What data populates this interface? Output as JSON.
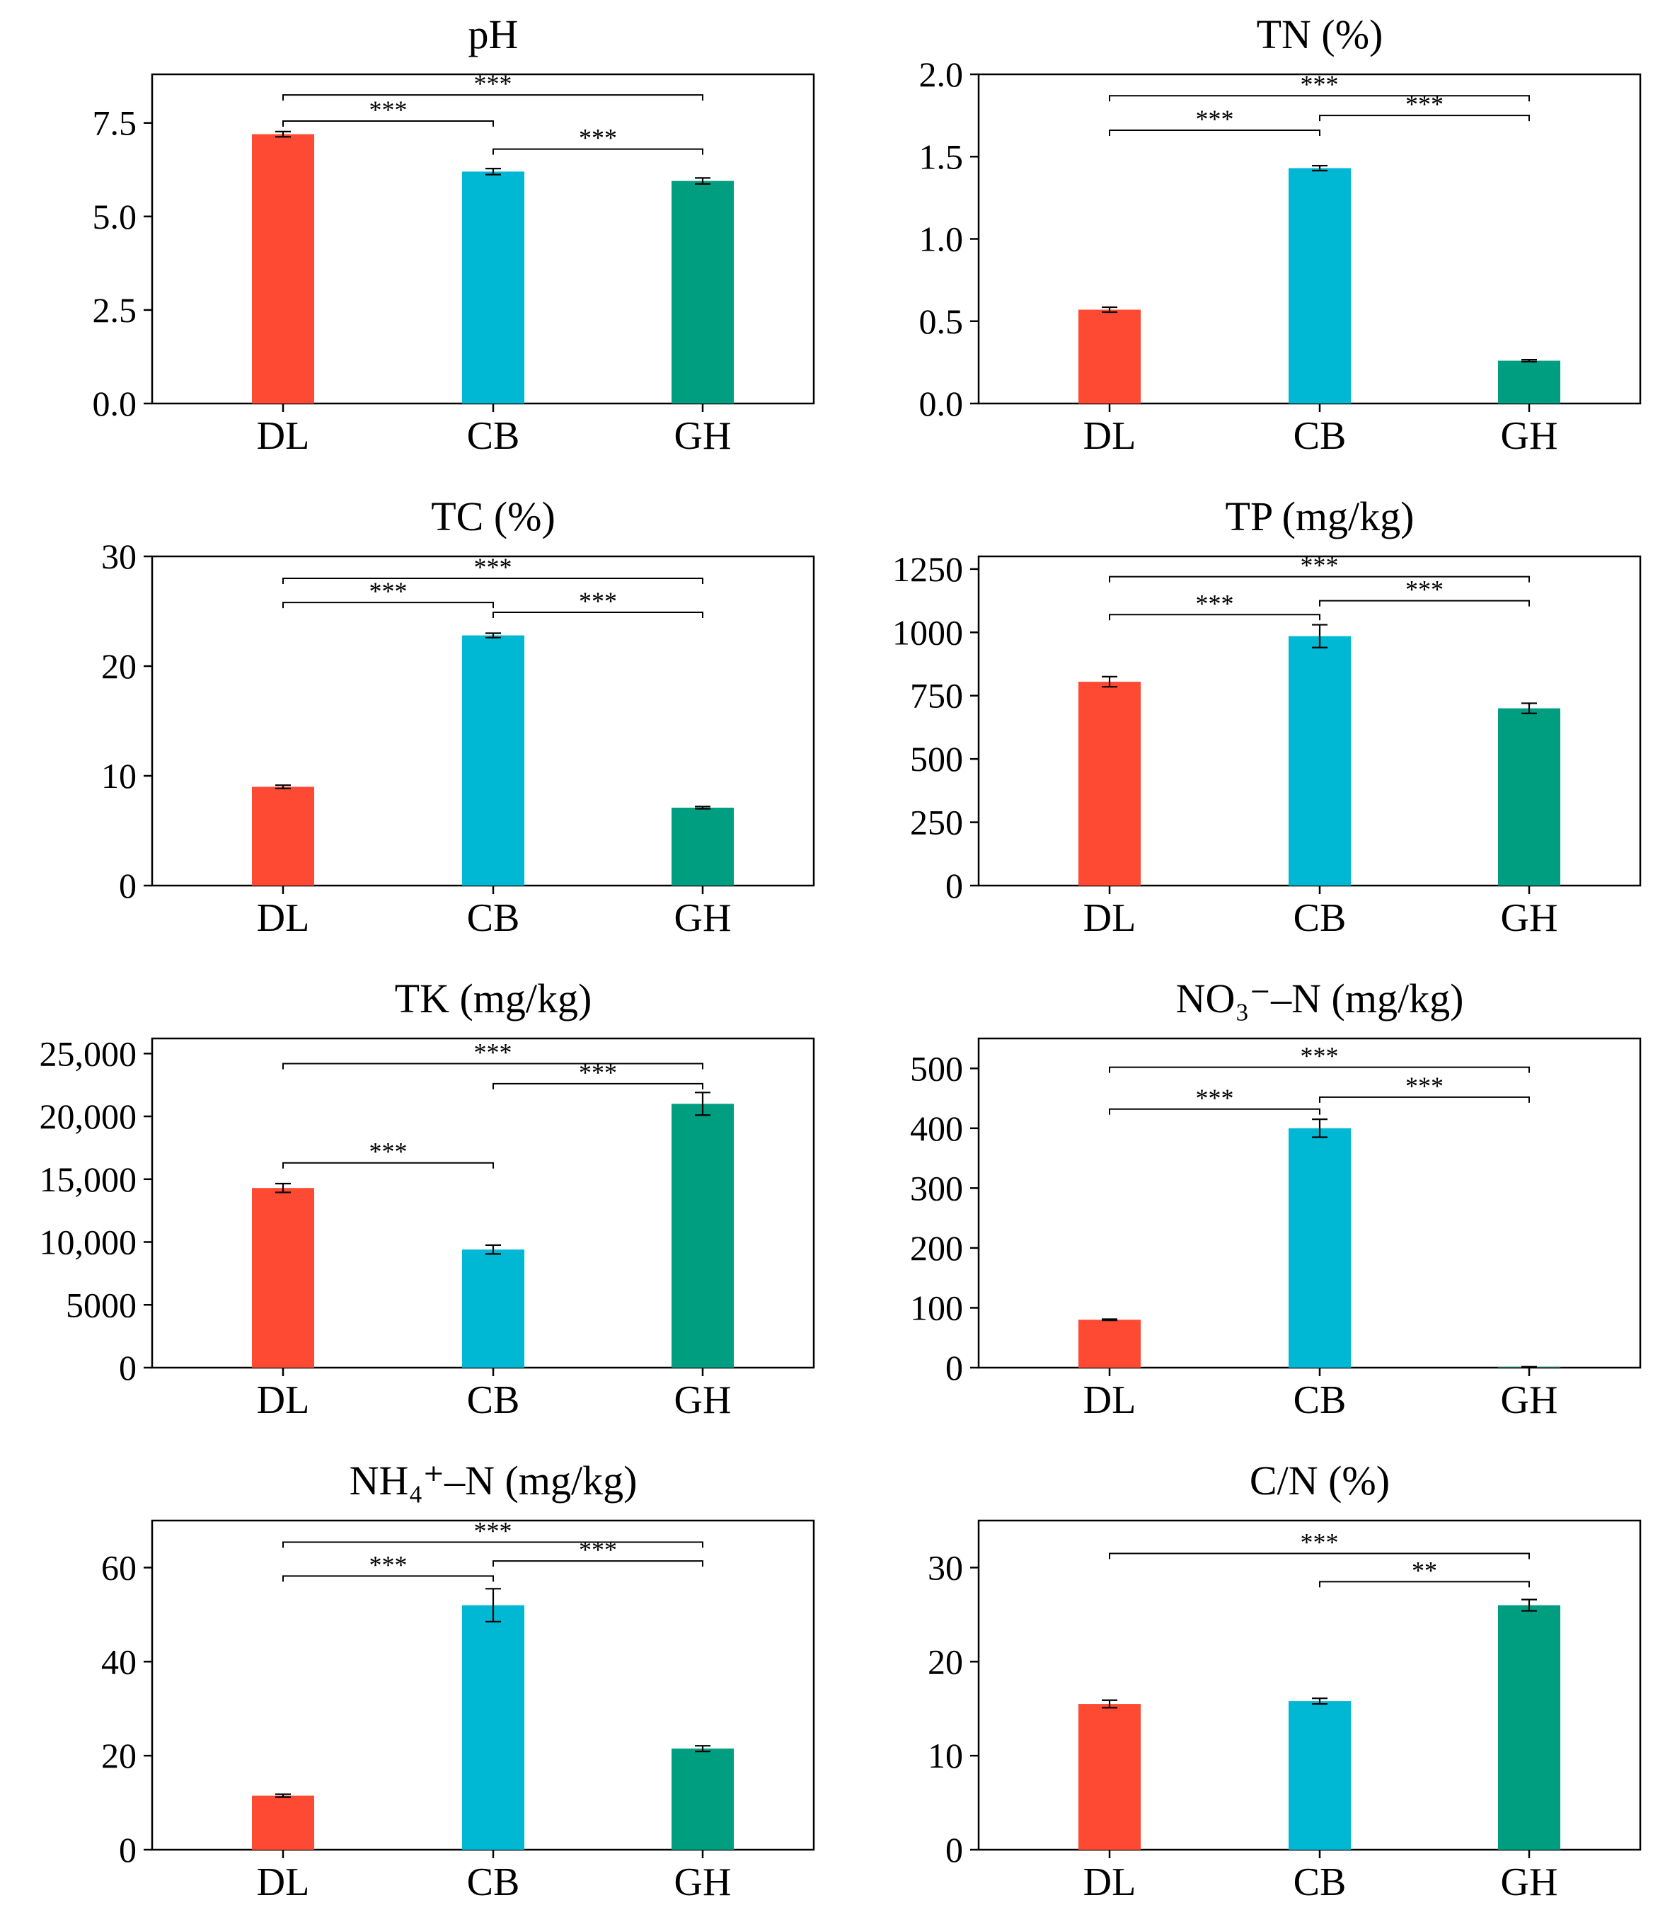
{
  "chart_data": [
    {
      "id": "ph",
      "type": "bar",
      "title": "pH",
      "categories": [
        "DL",
        "CB",
        "GH"
      ],
      "values": [
        7.2,
        6.2,
        5.95
      ],
      "errors": [
        0.07,
        0.08,
        0.08
      ],
      "colors": [
        "#ff4a33",
        "#00b8d4",
        "#009e80"
      ],
      "ylim": [
        0,
        8.8
      ],
      "yticks": [
        0,
        2.5,
        5.0,
        7.5
      ],
      "ytick_labels": [
        "0.0",
        "2.5",
        "5.0",
        "7.5"
      ],
      "significance": [
        {
          "from": 0,
          "to": 2,
          "label": "***",
          "y": 8.25
        },
        {
          "from": 0,
          "to": 1,
          "label": "***",
          "y": 7.55
        },
        {
          "from": 1,
          "to": 2,
          "label": "***",
          "y": 6.8
        }
      ]
    },
    {
      "id": "tn",
      "type": "bar",
      "title": "TN (%)",
      "categories": [
        "DL",
        "CB",
        "GH"
      ],
      "values": [
        0.57,
        1.43,
        0.26
      ],
      "errors": [
        0.015,
        0.015,
        0.006
      ],
      "colors": [
        "#ff4a33",
        "#00b8d4",
        "#009e80"
      ],
      "ylim": [
        0,
        2.0
      ],
      "yticks": [
        0,
        0.5,
        1.0,
        1.5,
        2.0
      ],
      "ytick_labels": [
        "0.0",
        "0.5",
        "1.0",
        "1.5",
        "2.0"
      ],
      "significance": [
        {
          "from": 0,
          "to": 2,
          "label": "***",
          "y": 1.87
        },
        {
          "from": 0,
          "to": 1,
          "label": "***",
          "y": 1.66
        },
        {
          "from": 1,
          "to": 2,
          "label": "***",
          "y": 1.75
        }
      ]
    },
    {
      "id": "tc",
      "type": "bar",
      "title": "TC (%)",
      "categories": [
        "DL",
        "CB",
        "GH"
      ],
      "values": [
        9.0,
        22.8,
        7.1
      ],
      "errors": [
        0.15,
        0.2,
        0.1
      ],
      "colors": [
        "#ff4a33",
        "#00b8d4",
        "#009e80"
      ],
      "ylim": [
        0,
        30
      ],
      "yticks": [
        0,
        10,
        20,
        30
      ],
      "ytick_labels": [
        "0",
        "10",
        "20",
        "30"
      ],
      "significance": [
        {
          "from": 0,
          "to": 2,
          "label": "***",
          "y": 28.0
        },
        {
          "from": 0,
          "to": 1,
          "label": "***",
          "y": 25.8
        },
        {
          "from": 1,
          "to": 2,
          "label": "***",
          "y": 24.9
        }
      ]
    },
    {
      "id": "tp",
      "type": "bar",
      "title": "TP (mg/kg)",
      "categories": [
        "DL",
        "CB",
        "GH"
      ],
      "values": [
        805,
        985,
        700
      ],
      "errors": [
        20,
        45,
        20
      ],
      "colors": [
        "#ff4a33",
        "#00b8d4",
        "#009e80"
      ],
      "ylim": [
        0,
        1300
      ],
      "yticks": [
        0,
        250,
        500,
        750,
        1000,
        1250
      ],
      "ytick_labels": [
        "0",
        "250",
        "500",
        "750",
        "1000",
        "1250"
      ],
      "significance": [
        {
          "from": 0,
          "to": 2,
          "label": "***",
          "y": 1220
        },
        {
          "from": 0,
          "to": 1,
          "label": "***",
          "y": 1070
        },
        {
          "from": 1,
          "to": 2,
          "label": "***",
          "y": 1125
        }
      ]
    },
    {
      "id": "tk",
      "type": "bar",
      "title": "TK (mg/kg)",
      "categories": [
        "DL",
        "CB",
        "GH"
      ],
      "values": [
        14300,
        9400,
        21000
      ],
      "errors": [
        350,
        350,
        900
      ],
      "colors": [
        "#ff4a33",
        "#00b8d4",
        "#009e80"
      ],
      "ylim": [
        0,
        26200
      ],
      "yticks": [
        0,
        5000,
        10000,
        15000,
        20000,
        25000
      ],
      "ytick_labels": [
        "0",
        "5000",
        "10,000",
        "15,000",
        "20,000",
        "25,000"
      ],
      "significance": [
        {
          "from": 0,
          "to": 2,
          "label": "***",
          "y": 24200
        },
        {
          "from": 1,
          "to": 2,
          "label": "***",
          "y": 22600
        },
        {
          "from": 0,
          "to": 1,
          "label": "***",
          "y": 16300
        }
      ]
    },
    {
      "id": "no3",
      "type": "bar",
      "title": "NO₃⁻–N (mg/kg)",
      "categories": [
        "DL",
        "CB",
        "GH"
      ],
      "values": [
        80,
        400,
        1
      ],
      "errors": [
        1,
        15,
        0.5
      ],
      "colors": [
        "#ff4a33",
        "#00b8d4",
        "#009e80"
      ],
      "ylim": [
        0,
        550
      ],
      "yticks": [
        0,
        100,
        200,
        300,
        400,
        500
      ],
      "ytick_labels": [
        "0",
        "100",
        "200",
        "300",
        "400",
        "500"
      ],
      "significance": [
        {
          "from": 0,
          "to": 2,
          "label": "***",
          "y": 502
        },
        {
          "from": 0,
          "to": 1,
          "label": "***",
          "y": 432
        },
        {
          "from": 1,
          "to": 2,
          "label": "***",
          "y": 452
        }
      ]
    },
    {
      "id": "nh4",
      "type": "bar",
      "title": "NH₄⁺–N (mg/kg)",
      "categories": [
        "DL",
        "CB",
        "GH"
      ],
      "values": [
        11.5,
        52,
        21.5
      ],
      "errors": [
        0.3,
        3.5,
        0.6
      ],
      "colors": [
        "#ff4a33",
        "#00b8d4",
        "#009e80"
      ],
      "ylim": [
        0,
        70
      ],
      "yticks": [
        0,
        20,
        40,
        60
      ],
      "ytick_labels": [
        "0",
        "20",
        "40",
        "60"
      ],
      "significance": [
        {
          "from": 0,
          "to": 2,
          "label": "***",
          "y": 65.4
        },
        {
          "from": 0,
          "to": 1,
          "label": "***",
          "y": 58.2
        },
        {
          "from": 1,
          "to": 2,
          "label": "***",
          "y": 61.4
        }
      ]
    },
    {
      "id": "cn",
      "type": "bar",
      "title": "C/N (%)",
      "categories": [
        "DL",
        "CB",
        "GH"
      ],
      "values": [
        15.5,
        15.8,
        26.0
      ],
      "errors": [
        0.4,
        0.3,
        0.6
      ],
      "colors": [
        "#ff4a33",
        "#00b8d4",
        "#009e80"
      ],
      "ylim": [
        0,
        35
      ],
      "yticks": [
        0,
        10,
        20,
        30
      ],
      "ytick_labels": [
        "0",
        "10",
        "20",
        "30"
      ],
      "significance": [
        {
          "from": 0,
          "to": 2,
          "label": "***",
          "y": 31.5
        },
        {
          "from": 1,
          "to": 2,
          "label": "**",
          "y": 28.5
        }
      ]
    }
  ]
}
